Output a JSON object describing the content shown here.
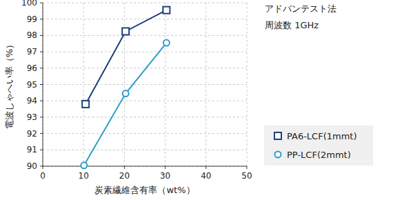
{
  "chart_data": {
    "type": "line",
    "x_label": "炭素繊維含有率（wt%）",
    "y_label": "電波しゃへい率（%）",
    "annotations": [
      "アドバンテスト法",
      "周波数 1GHz"
    ],
    "xlim": [
      0,
      50
    ],
    "xticks": [
      0,
      10,
      20,
      30,
      40,
      50
    ],
    "ylim": [
      90,
      100
    ],
    "yticks": [
      90,
      91,
      92,
      93,
      94,
      95,
      96,
      97,
      98,
      99,
      100
    ],
    "grid": true,
    "legend": "lower right",
    "series": [
      {
        "name": "PA6-LCF(1mmt)",
        "color": "#1f3f7a",
        "marker": "square",
        "line_style": "solid",
        "x": [
          10.5,
          20.3,
          30.3
        ],
        "values": [
          93.8,
          98.25,
          99.55
        ]
      },
      {
        "name": "PP-LCF(2mmt)",
        "color": "#2a9fc9",
        "marker": "circle",
        "line_style": "solid",
        "x": [
          10.1,
          20.3,
          30.3
        ],
        "values": [
          90.05,
          94.45,
          97.55
        ]
      }
    ]
  }
}
